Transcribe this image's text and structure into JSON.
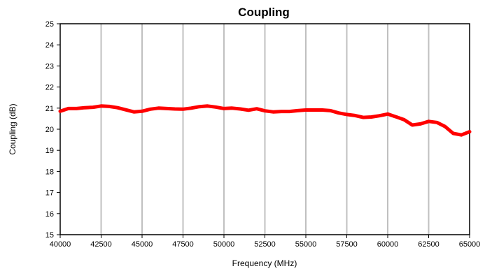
{
  "chart_data": {
    "type": "line",
    "title": "Coupling",
    "xlabel": "Frequency (MHz)",
    "ylabel": "Coupling (dB)",
    "xlim": [
      40000,
      65000
    ],
    "ylim": [
      15,
      25
    ],
    "x_ticks": [
      40000,
      42500,
      45000,
      47500,
      50000,
      52500,
      55000,
      57500,
      60000,
      62500,
      65000
    ],
    "y_ticks": [
      15,
      16,
      17,
      18,
      19,
      20,
      21,
      22,
      23,
      24,
      25
    ],
    "vertical_grid": true,
    "horizontal_grid": false,
    "legend": "none",
    "series": [
      {
        "color": "#ff0000",
        "x": [
          40000,
          40500,
          41000,
          41500,
          42000,
          42500,
          43000,
          43500,
          44000,
          44500,
          45000,
          45500,
          46000,
          46500,
          47000,
          47500,
          48000,
          48500,
          49000,
          49500,
          50000,
          50500,
          51000,
          51500,
          52000,
          52500,
          53000,
          53500,
          54000,
          54500,
          55000,
          55500,
          56000,
          56500,
          57000,
          57500,
          58000,
          58500,
          59000,
          59500,
          60000,
          60500,
          61000,
          61500,
          62000,
          62500,
          63000,
          63500,
          64000,
          64500,
          65000
        ],
        "y": [
          20.85,
          20.98,
          20.98,
          21.02,
          21.04,
          21.1,
          21.08,
          21.02,
          20.92,
          20.82,
          20.85,
          20.95,
          21.0,
          20.98,
          20.96,
          20.95,
          21.0,
          21.07,
          21.1,
          21.05,
          20.98,
          21.0,
          20.96,
          20.9,
          20.97,
          20.87,
          20.82,
          20.84,
          20.84,
          20.88,
          20.91,
          20.91,
          20.91,
          20.88,
          20.77,
          20.7,
          20.65,
          20.56,
          20.58,
          20.64,
          20.72,
          20.59,
          20.45,
          20.2,
          20.25,
          20.37,
          20.32,
          20.13,
          19.8,
          19.73,
          19.88
        ]
      }
    ]
  }
}
